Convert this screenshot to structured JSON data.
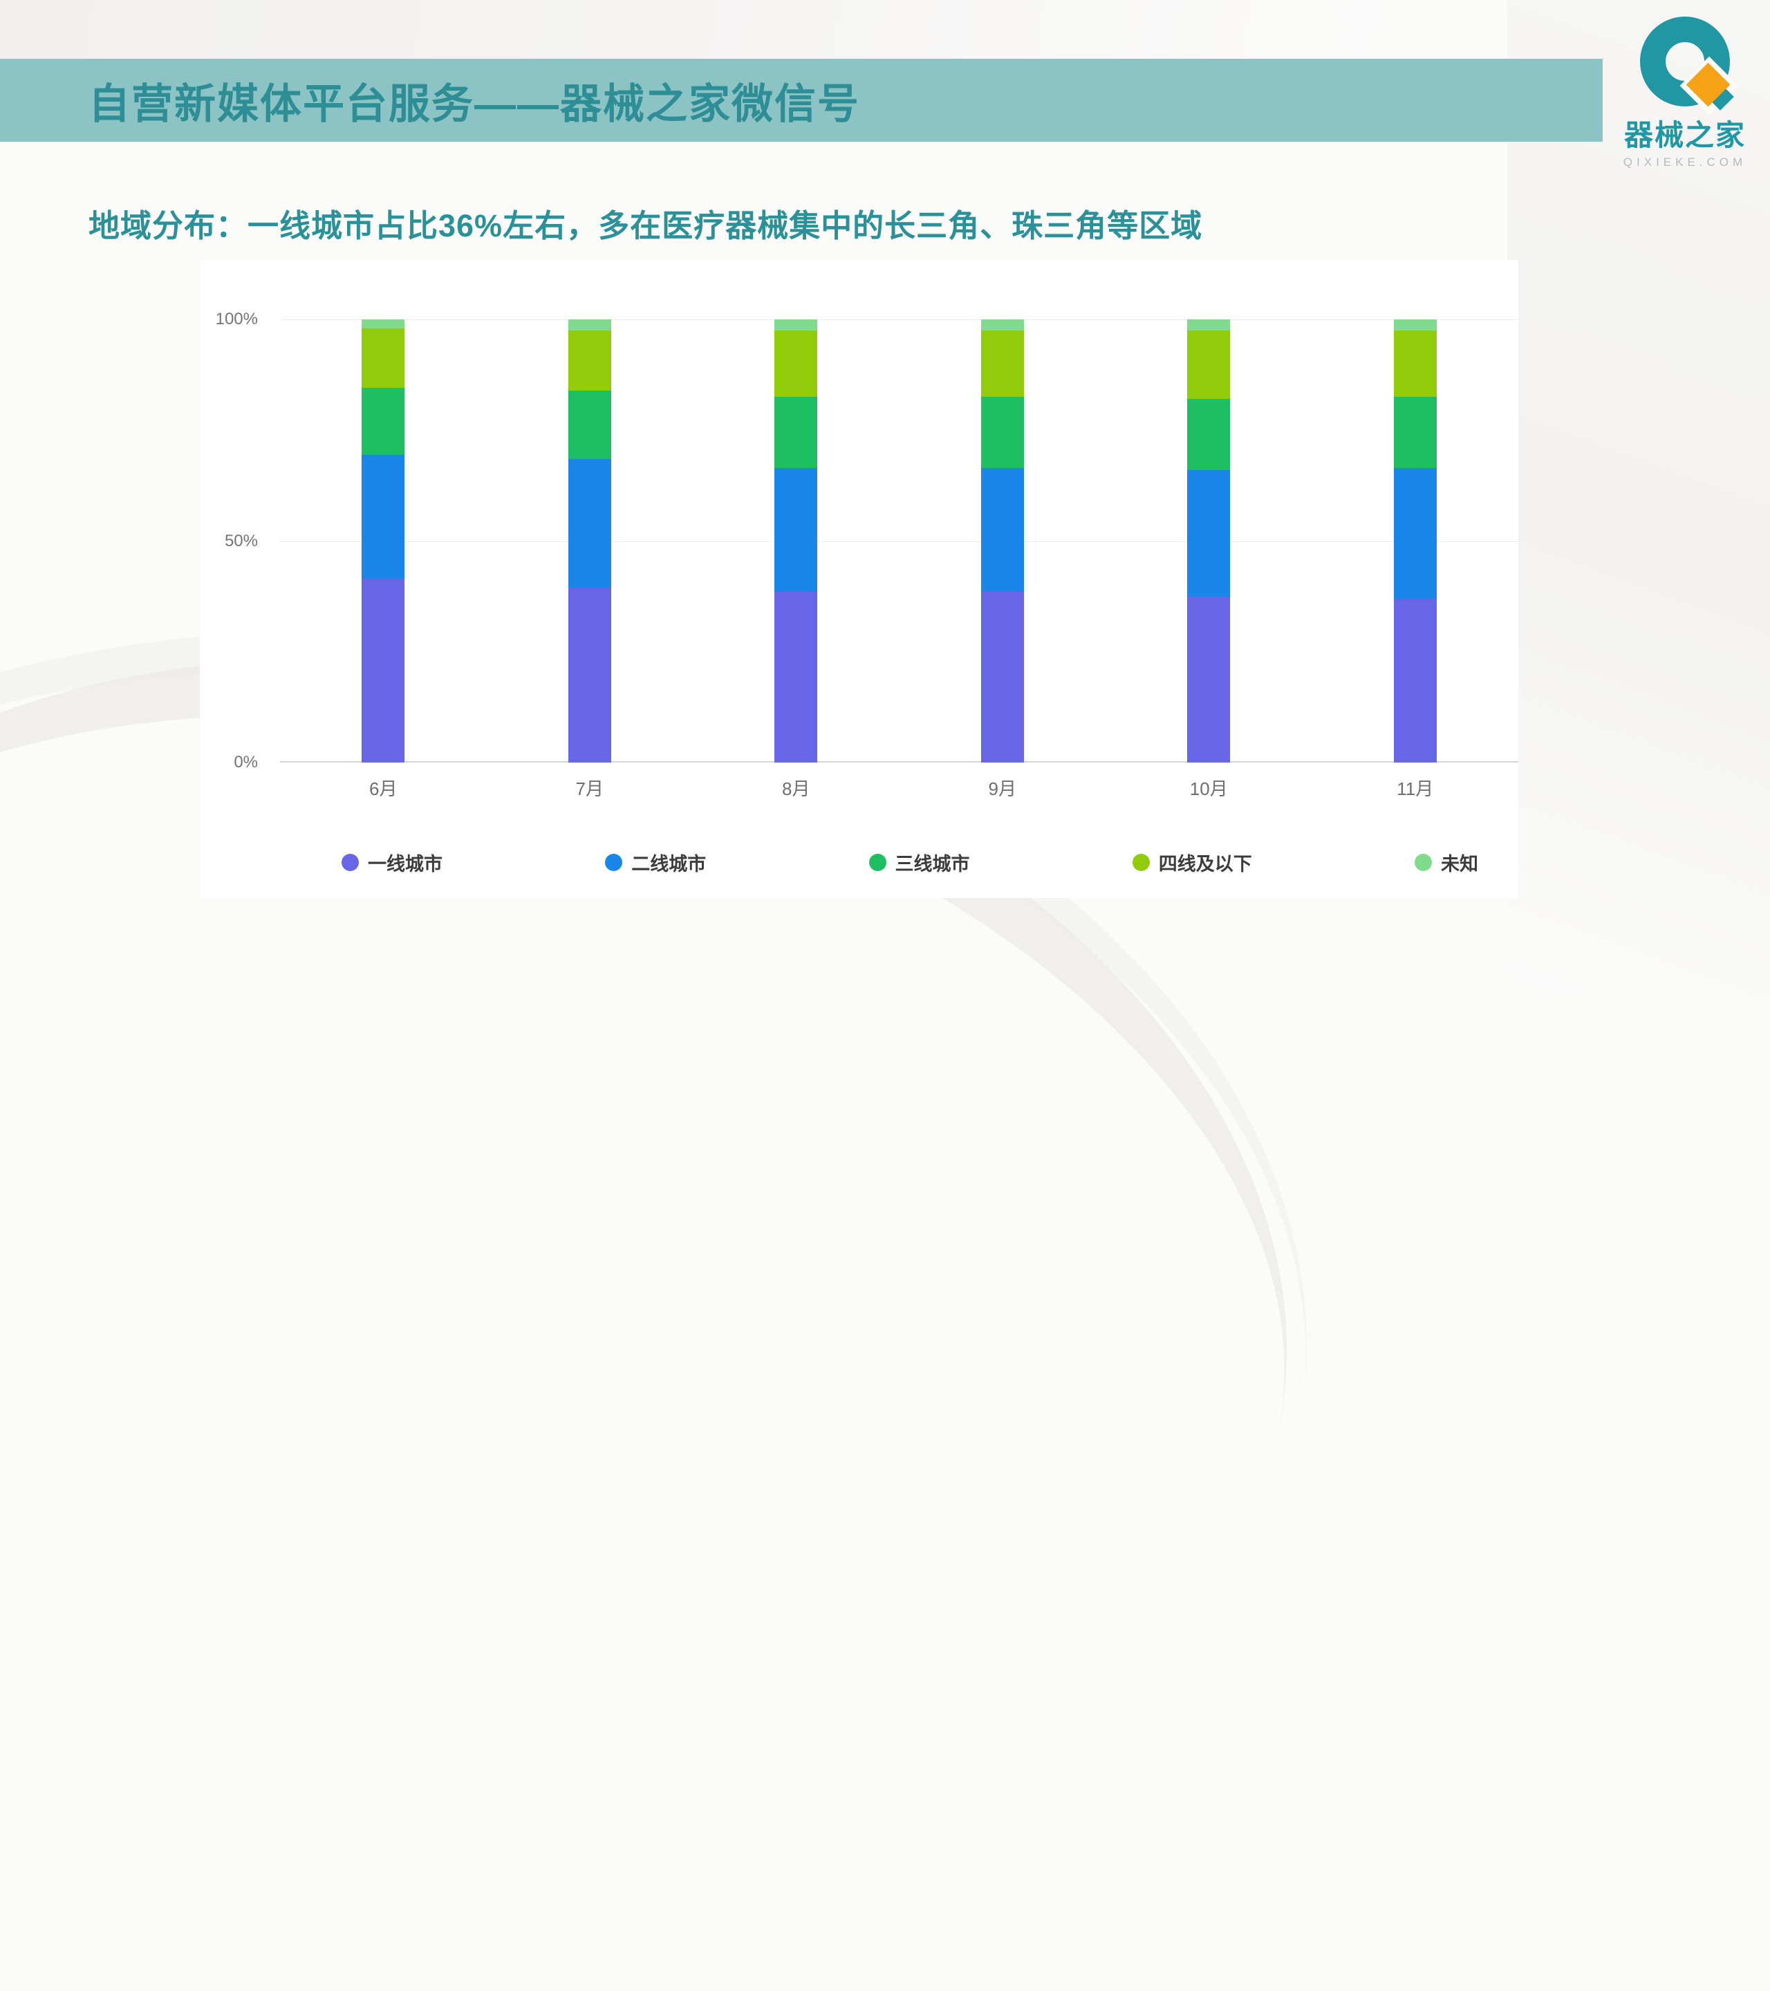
{
  "slide": {
    "title": "自营新媒体平台服务——器械之家微信号",
    "subtitle": "地域分布：一线城市占比36%左右，多在医疗器械集中的长三角、珠三角等区域"
  },
  "logo": {
    "brand": "器械之家",
    "domain": "QIXIEKE.COM",
    "icon": "q-ring-with-orange-diamond-icon",
    "teal": "#2297a4",
    "orange": "#f5a216"
  },
  "colors": {
    "banner_bg": "#8cc4c6",
    "banner_text": "#2e8e96",
    "subtitle_text": "#2b9198",
    "panel_bg": "#ffffff",
    "gridline": "#ececec",
    "axis_line": "#d6d6d6",
    "axis_text": "#747474",
    "legend_text": "#3c3c3c"
  },
  "chart_data": {
    "type": "bar",
    "variant": "stacked-percent-column",
    "title": "",
    "xlabel": "",
    "ylabel": "",
    "ylim": [
      0,
      100
    ],
    "grid": true,
    "legend_position": "bottom",
    "y_ticks": [
      "0%",
      "50%",
      "100%"
    ],
    "categories": [
      "6月",
      "7月",
      "8月",
      "9月",
      "10月",
      "11月"
    ],
    "series": [
      {
        "name": "一线城市",
        "color": "#6666e6",
        "values": [
          41.5,
          39.5,
          38.5,
          38.5,
          37.5,
          37.0
        ]
      },
      {
        "name": "二线城市",
        "color": "#1b86ea",
        "values": [
          28.0,
          29.0,
          28.0,
          28.0,
          28.5,
          29.5
        ]
      },
      {
        "name": "三线城市",
        "color": "#1ebf63",
        "values": [
          15.0,
          15.5,
          16.0,
          16.0,
          16.0,
          16.0
        ]
      },
      {
        "name": "四线及以下",
        "color": "#90cc0a",
        "values": [
          13.5,
          13.5,
          15.0,
          15.0,
          15.5,
          15.0
        ]
      },
      {
        "name": "未知",
        "color": "#80dc8d",
        "values": [
          2.0,
          2.5,
          2.5,
          2.5,
          2.5,
          2.5
        ]
      }
    ]
  }
}
